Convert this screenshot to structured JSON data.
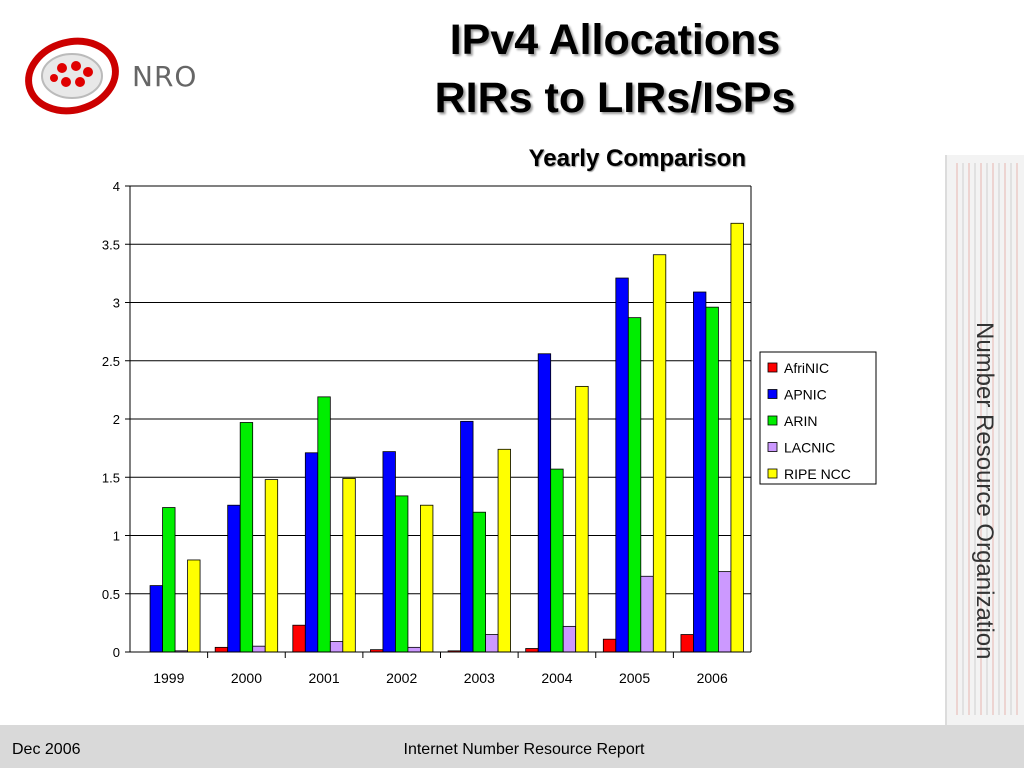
{
  "header": {
    "logo_text": "NRO",
    "title_line1": "IPv4 Allocations",
    "title_line2": "RIRs to LIRs/ISPs"
  },
  "side": {
    "label": "Number Resource Organization"
  },
  "footer": {
    "date": "Dec 2006",
    "report": "Internet Number Resource Report"
  },
  "colors": {
    "AfriNIC": "#ff0000",
    "APNIC": "#0000ff",
    "ARIN": "#00ee00",
    "LACNIC": "#cc99ff",
    "RIPE NCC": "#ffff00"
  },
  "chart_data": {
    "type": "bar",
    "title": "Yearly Comparison",
    "categories": [
      "1999",
      "2000",
      "2001",
      "2002",
      "2003",
      "2004",
      "2005",
      "2006"
    ],
    "ylim": [
      0,
      4
    ],
    "yticks": [
      "0",
      "0.5",
      "1",
      "1.5",
      "2",
      "2.5",
      "3",
      "3.5",
      "4"
    ],
    "grid": true,
    "legend_position": "right",
    "series": [
      {
        "name": "AfriNIC",
        "values": [
          0.0,
          0.04,
          0.23,
          0.02,
          0.01,
          0.03,
          0.11,
          0.15
        ]
      },
      {
        "name": "APNIC",
        "values": [
          0.57,
          1.26,
          1.71,
          1.72,
          1.98,
          2.56,
          3.21,
          3.09
        ]
      },
      {
        "name": "ARIN",
        "values": [
          1.24,
          1.97,
          2.19,
          1.34,
          1.2,
          1.57,
          2.87,
          2.96
        ]
      },
      {
        "name": "LACNIC",
        "values": [
          0.01,
          0.05,
          0.09,
          0.04,
          0.15,
          0.22,
          0.65,
          0.69
        ]
      },
      {
        "name": "RIPE NCC",
        "values": [
          0.79,
          1.48,
          1.49,
          1.26,
          1.74,
          2.28,
          3.41,
          3.68
        ]
      }
    ]
  }
}
